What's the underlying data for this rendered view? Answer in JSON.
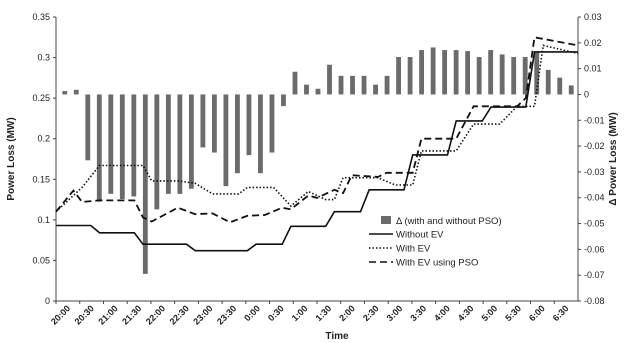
{
  "chart_data": {
    "type": "bar+line",
    "xlabel": "Time",
    "ylabel_left": "Power Loss (MW)",
    "ylabel_right": "Δ Power Loss (MW)",
    "ylim_left": [
      0,
      0.35
    ],
    "ylim_right": [
      -0.08,
      0.03
    ],
    "yticks_left": [
      "0",
      "0.05",
      "0.1",
      "0.15",
      "0.2",
      "0.25",
      "0.3",
      "0.35"
    ],
    "yticks_right": [
      "-0.08",
      "-0.07",
      "-0.06",
      "-0.05",
      "-0.04",
      "-0.03",
      "-0.02",
      "-0.01",
      "0",
      "0.01",
      "0.02",
      "0.03"
    ],
    "x_tick_labels": [
      "20:00",
      "20:30",
      "21:00",
      "21:30",
      "22:00",
      "22:30",
      "23:00",
      "23:30",
      "0:00",
      "0:30",
      "1:00",
      "1:30",
      "2:00",
      "2:30",
      "3:00",
      "3:30",
      "4:00",
      "4:30",
      "5:00",
      "5:30",
      "6:00",
      "6:30"
    ],
    "legend_position": "center-right",
    "grid": false,
    "bar_series": {
      "name": "Δ (with and without PSO)",
      "axis": "right",
      "color": "#6b6b6b",
      "values": [
        0.0013,
        0.0018,
        -0.0255,
        -0.0415,
        -0.0385,
        -0.0405,
        -0.0395,
        -0.0695,
        -0.0445,
        -0.0385,
        -0.0385,
        -0.0365,
        -0.0205,
        -0.0225,
        -0.0355,
        -0.0305,
        -0.0235,
        -0.0305,
        -0.0225,
        -0.0045,
        0.0088,
        0.0038,
        0.0022,
        0.0115,
        0.0072,
        0.0072,
        0.0072,
        0.0038,
        0.0072,
        0.0145,
        0.0145,
        0.0172,
        0.0182,
        0.0172,
        0.0172,
        0.0168,
        0.0145,
        0.0172,
        0.0155,
        0.0145,
        0.0145,
        0.0165,
        0.0095,
        0.0065,
        0.0035
      ]
    },
    "line_series": [
      {
        "name": "Without EV",
        "axis": "left",
        "style": "solid",
        "color": "#111111",
        "points": [
          [
            0,
            0.093
          ],
          [
            4,
            0.093
          ],
          [
            5,
            0.084
          ],
          [
            9,
            0.084
          ],
          [
            10,
            0.07
          ],
          [
            15,
            0.07
          ],
          [
            16,
            0.062
          ],
          [
            22,
            0.062
          ],
          [
            23,
            0.07
          ],
          [
            26,
            0.07
          ],
          [
            27,
            0.092
          ],
          [
            31,
            0.092
          ],
          [
            32,
            0.11
          ],
          [
            35,
            0.11
          ],
          [
            36,
            0.137
          ],
          [
            40,
            0.137
          ],
          [
            41,
            0.18
          ],
          [
            45,
            0.18
          ],
          [
            46,
            0.222
          ],
          [
            49,
            0.222
          ],
          [
            50,
            0.239
          ],
          [
            54,
            0.239
          ],
          [
            55,
            0.307
          ],
          [
            60,
            0.307
          ]
        ]
      },
      {
        "name": "With EV",
        "axis": "left",
        "style": "dotted",
        "color": "#111111",
        "points": [
          [
            0,
            0.11
          ],
          [
            3,
            0.14
          ],
          [
            5,
            0.167
          ],
          [
            10,
            0.167
          ],
          [
            11,
            0.148
          ],
          [
            14,
            0.148
          ],
          [
            16,
            0.145
          ],
          [
            18,
            0.132
          ],
          [
            21,
            0.132
          ],
          [
            22,
            0.14
          ],
          [
            25,
            0.14
          ],
          [
            27,
            0.117
          ],
          [
            29,
            0.135
          ],
          [
            31,
            0.125
          ],
          [
            32,
            0.125
          ],
          [
            33,
            0.152
          ],
          [
            37,
            0.152
          ],
          [
            39,
            0.143
          ],
          [
            41,
            0.143
          ],
          [
            42,
            0.185
          ],
          [
            46,
            0.185
          ],
          [
            48,
            0.218
          ],
          [
            51,
            0.218
          ],
          [
            53,
            0.24
          ],
          [
            55,
            0.24
          ],
          [
            56,
            0.315
          ],
          [
            60,
            0.305
          ]
        ]
      },
      {
        "name": "With EV using PSO",
        "axis": "left",
        "style": "dashed",
        "color": "#111111",
        "points": [
          [
            0,
            0.11
          ],
          [
            2,
            0.136
          ],
          [
            3,
            0.122
          ],
          [
            5,
            0.124
          ],
          [
            9,
            0.124
          ],
          [
            10,
            0.103
          ],
          [
            11,
            0.098
          ],
          [
            14,
            0.115
          ],
          [
            16,
            0.107
          ],
          [
            18,
            0.108
          ],
          [
            20,
            0.097
          ],
          [
            22,
            0.105
          ],
          [
            24,
            0.106
          ],
          [
            26,
            0.115
          ],
          [
            27,
            0.113
          ],
          [
            29,
            0.13
          ],
          [
            30,
            0.127
          ],
          [
            32,
            0.137
          ],
          [
            33,
            0.133
          ],
          [
            34,
            0.155
          ],
          [
            37,
            0.153
          ],
          [
            38,
            0.158
          ],
          [
            41,
            0.158
          ],
          [
            42,
            0.2
          ],
          [
            46,
            0.2
          ],
          [
            48,
            0.24
          ],
          [
            51,
            0.24
          ],
          [
            53,
            0.24
          ],
          [
            54,
            0.25
          ],
          [
            55,
            0.325
          ],
          [
            60,
            0.315
          ]
        ]
      }
    ]
  }
}
